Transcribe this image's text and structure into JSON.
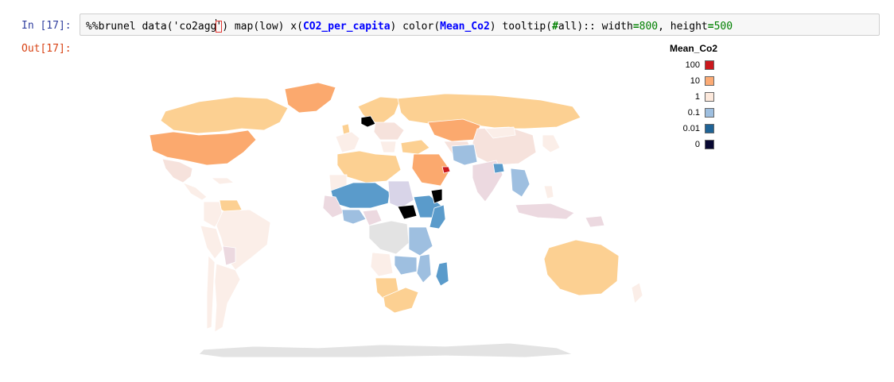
{
  "cell": {
    "in_prompt": "In [17]:",
    "out_prompt": "Out[17]:",
    "code": {
      "t1": "%%brunel data('co2agg",
      "t2": "'",
      "t3": ") map(low) x(",
      "t4": "CO2_per_capita",
      "t5": ") color(",
      "t6": "Mean_Co2",
      "t7": ") tooltip(",
      "t8": "#",
      "t9": "all):: width",
      "t10": "=",
      "t11": "800",
      "t12": ", height",
      "t13": "=",
      "t14": "500"
    }
  },
  "legend": {
    "title": "Mean_Co2",
    "items": [
      {
        "label": "100",
        "color": "#cb181d"
      },
      {
        "label": "10",
        "color": "#fcab75"
      },
      {
        "label": "1",
        "color": "#fde9dc"
      },
      {
        "label": "0.1",
        "color": "#9ebfe0"
      },
      {
        "label": "0.01",
        "color": "#1f6396"
      },
      {
        "label": "0",
        "color": "#080832"
      }
    ]
  },
  "map_colors": {
    "very_low": "#fbeee8",
    "low": "#f6e2dc",
    "mid": "#fcd092",
    "high": "#fba96e",
    "top": "#cb181d",
    "blue_light": "#9ebfe0",
    "blue_mid": "#5a9bcb",
    "blue_dark": "#1f6396",
    "lavender": "#d8d4e8",
    "pink": "#ecd9e0",
    "black": "#000000",
    "nodata": "#e3e3e3"
  }
}
